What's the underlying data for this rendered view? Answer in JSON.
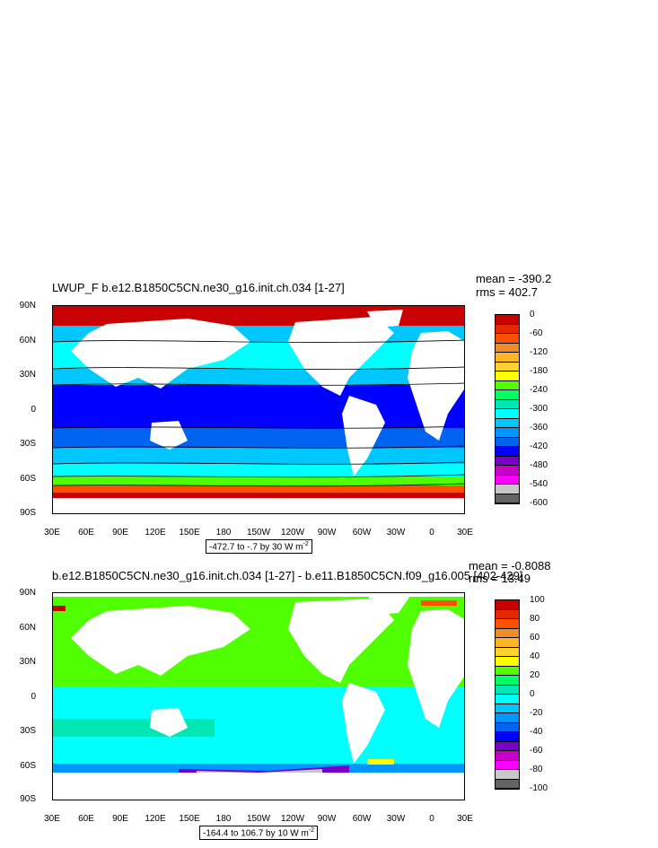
{
  "panel1": {
    "title": "LWUP_F b.e12.B1850C5CN.ne30_g16.init.ch.034 [1-27]",
    "mean": "mean = -390.2",
    "rms": "rms = 402.7",
    "range": "-472.7 to -.7 by 30  W m",
    "range_exp": "-2",
    "colorbar_labels": [
      "0",
      "-60",
      "-120",
      "-180",
      "-240",
      "-300",
      "-360",
      "-420",
      "-480",
      "-540",
      "-600"
    ],
    "colorbar_colors": [
      "#c80000",
      "#e62800",
      "#ff5000",
      "#f08c28",
      "#ffb428",
      "#ffd232",
      "#ffff00",
      "#50ff00",
      "#00ff64",
      "#00e6b4",
      "#00ffff",
      "#00c8ff",
      "#0096ff",
      "#0064f0",
      "#0000ff",
      "#7800c8",
      "#c800c8",
      "#ff00ff",
      "#c8c8c8",
      "#646464"
    ]
  },
  "panel2": {
    "title": "b.e12.B1850C5CN.ne30_g16.init.ch.034 [1-27] - b.e11.B1850C5CN.f09_g16.005 [402-429]",
    "mean": "mean = -0.8088",
    "rms": "rms = 13.49",
    "range": "-164.4 to 106.7 by 10  W m",
    "range_exp": "-2",
    "colorbar_labels": [
      "100",
      "80",
      "60",
      "40",
      "20",
      "0",
      "-20",
      "-40",
      "-60",
      "-80",
      "-100"
    ],
    "colorbar_colors": [
      "#c80000",
      "#e62800",
      "#ff5000",
      "#f08c28",
      "#ffb428",
      "#ffd232",
      "#ffff00",
      "#50ff00",
      "#00ff64",
      "#00e6b4",
      "#00ffff",
      "#00c8ff",
      "#0096ff",
      "#0064f0",
      "#0000ff",
      "#7800c8",
      "#c800c8",
      "#ff00ff",
      "#c8c8c8",
      "#646464"
    ]
  },
  "lat_labels": [
    "90N",
    "60N",
    "30N",
    "0",
    "30S",
    "60S",
    "90S"
  ],
  "lon_labels": [
    "30E",
    "60E",
    "90E",
    "120E",
    "150E",
    "180",
    "150W",
    "120W",
    "90W",
    "60W",
    "30W",
    "0",
    "30E"
  ]
}
